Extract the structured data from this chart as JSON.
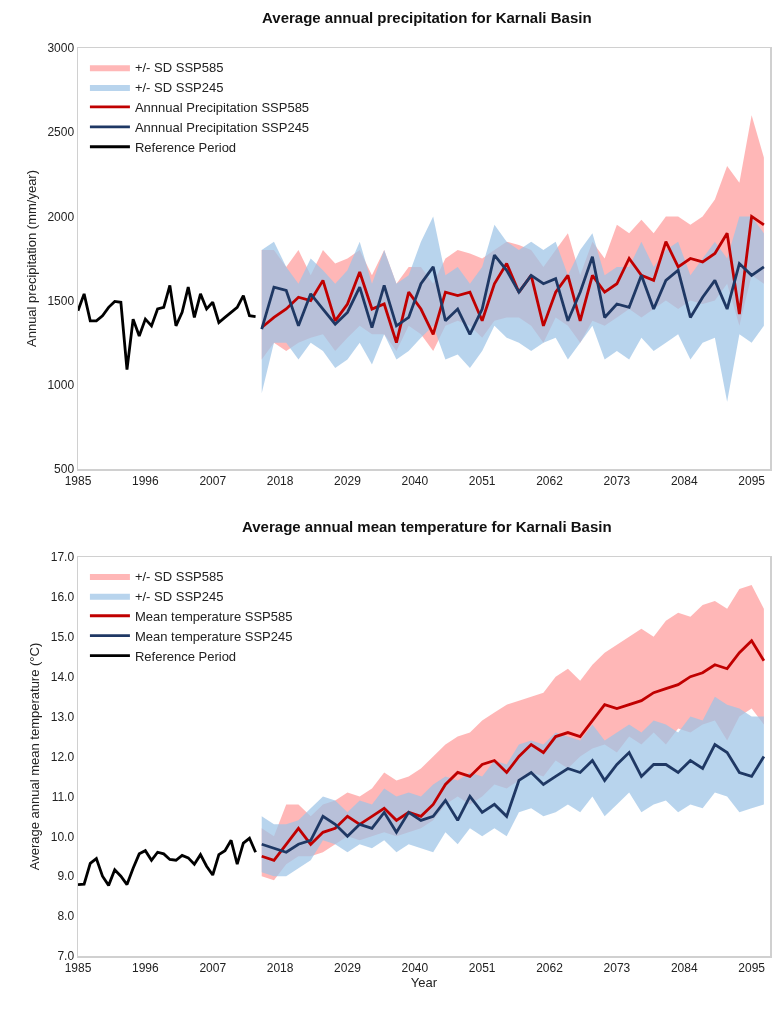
{
  "chart_data": [
    {
      "type": "line",
      "title": "Average annual precipitation for Karnali Basin",
      "ylabel": "Annual precipitation (mm/year)",
      "legend": "top left",
      "xlim": [
        1985,
        2098
      ],
      "xticks": [
        1985,
        1996,
        2007,
        2018,
        2029,
        2040,
        2051,
        2062,
        2073,
        2084,
        2095
      ],
      "ylim": [
        500,
        3000
      ],
      "yticks": [
        500,
        1000,
        1500,
        2000,
        2500,
        3000
      ],
      "series": [
        {
          "name": "+/- SD SSP585",
          "type": "area",
          "color": "#ff9b9b",
          "x": [
            2015,
            2017,
            2019,
            2021,
            2023,
            2025,
            2027,
            2029,
            2031,
            2033,
            2035,
            2037,
            2039,
            2041,
            2043,
            2045,
            2047,
            2049,
            2051,
            2053,
            2055,
            2057,
            2059,
            2061,
            2063,
            2065,
            2067,
            2069,
            2071,
            2073,
            2075,
            2077,
            2079,
            2081,
            2083,
            2085,
            2087,
            2089,
            2091,
            2093,
            2095,
            2097
          ],
          "values": [
            null,
            null,
            null,
            null,
            null,
            null,
            null,
            null,
            null,
            null,
            null,
            null,
            null,
            null,
            null,
            null,
            null,
            null,
            null,
            null,
            null,
            null,
            null,
            null,
            null,
            null,
            null,
            null,
            null,
            null,
            null,
            null,
            null,
            null,
            null,
            null,
            null,
            null,
            null,
            null,
            null,
            null
          ],
          "lower": [
            1150,
            1250,
            1200,
            1250,
            1280,
            1300,
            1200,
            1280,
            1350,
            1300,
            1300,
            1200,
            1350,
            1300,
            1200,
            1350,
            1380,
            1350,
            1280,
            1380,
            1400,
            1400,
            1350,
            1250,
            1400,
            1350,
            1250,
            1380,
            1350,
            1400,
            1450,
            1400,
            1450,
            1500,
            1450,
            1500,
            1480,
            1500,
            1600,
            1350,
            1650,
            1600
          ],
          "upper": [
            1800,
            1800,
            1700,
            1800,
            1650,
            1800,
            1720,
            1750,
            1800,
            1650,
            1800,
            1600,
            1700,
            1700,
            1600,
            1750,
            1800,
            1780,
            1750,
            1800,
            1850,
            1830,
            1800,
            1700,
            1800,
            1900,
            1650,
            1850,
            1750,
            1950,
            1900,
            1980,
            1900,
            2000,
            2000,
            1950,
            2000,
            2100,
            2300,
            2200,
            2600,
            2350
          ]
        },
        {
          "name": "+/- SD SSP245",
          "type": "area",
          "color": "#9dc3e6",
          "x": [
            2015,
            2017,
            2019,
            2021,
            2023,
            2025,
            2027,
            2029,
            2031,
            2033,
            2035,
            2037,
            2039,
            2041,
            2043,
            2045,
            2047,
            2049,
            2051,
            2053,
            2055,
            2057,
            2059,
            2061,
            2063,
            2065,
            2067,
            2069,
            2071,
            2073,
            2075,
            2077,
            2079,
            2081,
            2083,
            2085,
            2087,
            2089,
            2091,
            2093,
            2095,
            2097
          ],
          "values": [
            null,
            null,
            null,
            null,
            null,
            null,
            null,
            null,
            null,
            null,
            null,
            null,
            null,
            null,
            null,
            null,
            null,
            null,
            null,
            null,
            null,
            null,
            null,
            null,
            null,
            null,
            null,
            null,
            null,
            null,
            null,
            null,
            null,
            null,
            null,
            null,
            null,
            null,
            null,
            null,
            null,
            null
          ],
          "lower": [
            950,
            1250,
            1250,
            1150,
            1250,
            1200,
            1100,
            1150,
            1250,
            1120,
            1300,
            1150,
            1200,
            1280,
            1350,
            1150,
            1180,
            1100,
            1200,
            1350,
            1280,
            1250,
            1200,
            1250,
            1280,
            1150,
            1250,
            1350,
            1150,
            1200,
            1150,
            1280,
            1200,
            1250,
            1300,
            1150,
            1250,
            1280,
            900,
            1300,
            1250,
            1350
          ],
          "upper": [
            1800,
            1850,
            1700,
            1600,
            1750,
            1680,
            1600,
            1680,
            1850,
            1600,
            1800,
            1600,
            1650,
            1850,
            2000,
            1650,
            1700,
            1600,
            1700,
            1950,
            1850,
            1800,
            1850,
            1800,
            1850,
            1650,
            1800,
            1900,
            1650,
            1700,
            1700,
            1850,
            1700,
            1800,
            1850,
            1650,
            1750,
            1850,
            1750,
            2000,
            2000,
            1900
          ]
        },
        {
          "name": "Annnual Precipitation SSP585",
          "color": "#c00000",
          "x": [
            2015,
            2017,
            2019,
            2021,
            2023,
            2025,
            2027,
            2029,
            2031,
            2033,
            2035,
            2037,
            2039,
            2041,
            2043,
            2045,
            2047,
            2049,
            2051,
            2053,
            2055,
            2057,
            2059,
            2061,
            2063,
            2065,
            2067,
            2069,
            2071,
            2073,
            2075,
            2077,
            2079,
            2081,
            2083,
            2085,
            2087,
            2089,
            2091,
            2093,
            2095,
            2097
          ],
          "values": [
            1340,
            1400,
            1450,
            1520,
            1500,
            1620,
            1380,
            1480,
            1670,
            1450,
            1480,
            1250,
            1550,
            1450,
            1300,
            1550,
            1530,
            1550,
            1380,
            1600,
            1720,
            1550,
            1650,
            1350,
            1550,
            1650,
            1380,
            1650,
            1550,
            1600,
            1750,
            1650,
            1620,
            1850,
            1700,
            1750,
            1730,
            1780,
            1900,
            1420,
            2000,
            1950
          ]
        },
        {
          "name": "Annnual Precipitation SSP245",
          "color": "#1f3864",
          "x": [
            2015,
            2017,
            2019,
            2021,
            2023,
            2025,
            2027,
            2029,
            2031,
            2033,
            2035,
            2037,
            2039,
            2041,
            2043,
            2045,
            2047,
            2049,
            2051,
            2053,
            2055,
            2057,
            2059,
            2061,
            2063,
            2065,
            2067,
            2069,
            2071,
            2073,
            2075,
            2077,
            2079,
            2081,
            2083,
            2085,
            2087,
            2089,
            2091,
            2093,
            2095,
            2097
          ],
          "values": [
            1330,
            1580,
            1560,
            1350,
            1540,
            1450,
            1360,
            1430,
            1580,
            1340,
            1590,
            1350,
            1400,
            1600,
            1700,
            1380,
            1450,
            1300,
            1450,
            1770,
            1680,
            1550,
            1650,
            1600,
            1630,
            1380,
            1550,
            1760,
            1400,
            1480,
            1460,
            1650,
            1450,
            1620,
            1680,
            1400,
            1520,
            1620,
            1450,
            1720,
            1650,
            1700
          ]
        },
        {
          "name": "Reference Period",
          "color": "#000000",
          "x": [
            1985,
            1986,
            1987,
            1988,
            1989,
            1990,
            1991,
            1992,
            1993,
            1994,
            1995,
            1996,
            1997,
            1998,
            1999,
            2000,
            2001,
            2002,
            2003,
            2004,
            2005,
            2006,
            2007,
            2008,
            2009,
            2010,
            2011,
            2012,
            2013,
            2014
          ],
          "values": [
            1440,
            1540,
            1380,
            1380,
            1410,
            1460,
            1495,
            1490,
            1090,
            1390,
            1290,
            1390,
            1350,
            1450,
            1460,
            1590,
            1350,
            1430,
            1580,
            1400,
            1540,
            1450,
            1490,
            1370,
            1400,
            1430,
            1460,
            1530,
            1410,
            1405
          ]
        }
      ]
    },
    {
      "type": "line",
      "title": "Average annual mean temperature for Karnali Basin",
      "xlabel": "Year",
      "ylabel": "Average annual mean temperature (°C)",
      "legend": "top left",
      "xlim": [
        1985,
        2098
      ],
      "xticks": [
        1985,
        1996,
        2007,
        2018,
        2029,
        2040,
        2051,
        2062,
        2073,
        2084,
        2095
      ],
      "ylim": [
        7,
        17
      ],
      "yticks": [
        {
          "value": 7,
          "label": "7.0"
        },
        {
          "value": 8,
          "label": "8.0"
        },
        {
          "value": 9,
          "label": "9.0"
        },
        {
          "value": 10,
          "label": "10.0"
        },
        {
          "value": 11,
          "label": "11.0"
        },
        {
          "value": 12,
          "label": "12.0"
        },
        {
          "value": 13,
          "label": "13.0"
        },
        {
          "value": 14,
          "label": "14.0"
        },
        {
          "value": 15,
          "label": "15.0"
        },
        {
          "value": 16,
          "label": "16.0"
        },
        {
          "value": 17,
          "label": "17.0"
        }
      ],
      "series": [
        {
          "name": "+/- SD SSP585",
          "type": "area",
          "color": "#ff9b9b",
          "x": [
            2015,
            2017,
            2019,
            2021,
            2023,
            2025,
            2027,
            2029,
            2031,
            2033,
            2035,
            2037,
            2039,
            2041,
            2043,
            2045,
            2047,
            2049,
            2051,
            2053,
            2055,
            2057,
            2059,
            2061,
            2063,
            2065,
            2067,
            2069,
            2071,
            2073,
            2075,
            2077,
            2079,
            2081,
            2083,
            2085,
            2087,
            2089,
            2091,
            2093,
            2095,
            2097
          ],
          "values": [
            null,
            null,
            null,
            null,
            null,
            null,
            null,
            null,
            null,
            null,
            null,
            null,
            null,
            null,
            null,
            null,
            null,
            null,
            null,
            null,
            null,
            null,
            null,
            null,
            null,
            null,
            null,
            null,
            null,
            null,
            null,
            null,
            null,
            null,
            null,
            null,
            null,
            null,
            null,
            null,
            null,
            null
          ],
          "lower": [
            9.0,
            8.9,
            9.3,
            9.5,
            9.5,
            9.6,
            9.8,
            10.0,
            9.9,
            10.0,
            10.1,
            10.0,
            10.1,
            10.2,
            10.4,
            10.8,
            11.0,
            10.8,
            11.0,
            11.3,
            11.2,
            11.4,
            11.6,
            11.5,
            11.9,
            11.7,
            12.0,
            12.2,
            12.3,
            12.1,
            12.5,
            12.3,
            12.6,
            12.3,
            12.7,
            12.6,
            12.8,
            12.9,
            12.4,
            13.0,
            13.2,
            12.8
          ],
          "upper": [
            10.2,
            10.0,
            10.8,
            10.8,
            10.5,
            10.8,
            10.9,
            11.1,
            11.0,
            11.2,
            11.6,
            11.4,
            11.5,
            11.7,
            12.0,
            12.3,
            12.5,
            12.6,
            12.9,
            13.1,
            13.3,
            13.4,
            13.5,
            13.6,
            14.0,
            14.2,
            13.9,
            14.3,
            14.6,
            14.8,
            15.0,
            15.2,
            15.0,
            15.4,
            15.6,
            15.5,
            15.8,
            15.9,
            15.7,
            16.2,
            16.3,
            15.7
          ]
        },
        {
          "name": "+/- SD SSP245",
          "type": "area",
          "color": "#9dc3e6",
          "x": [
            2015,
            2017,
            2019,
            2021,
            2023,
            2025,
            2027,
            2029,
            2031,
            2033,
            2035,
            2037,
            2039,
            2041,
            2043,
            2045,
            2047,
            2049,
            2051,
            2053,
            2055,
            2057,
            2059,
            2061,
            2063,
            2065,
            2067,
            2069,
            2071,
            2073,
            2075,
            2077,
            2079,
            2081,
            2083,
            2085,
            2087,
            2089,
            2091,
            2093,
            2095,
            2097
          ],
          "values": [
            null,
            null,
            null,
            null,
            null,
            null,
            null,
            null,
            null,
            null,
            null,
            null,
            null,
            null,
            null,
            null,
            null,
            null,
            null,
            null,
            null,
            null,
            null,
            null,
            null,
            null,
            null,
            null,
            null,
            null,
            null,
            null,
            null,
            null,
            null,
            null,
            null,
            null,
            null,
            null,
            null,
            null
          ],
          "lower": [
            9.1,
            9.0,
            9.0,
            9.2,
            9.4,
            9.9,
            9.8,
            9.6,
            9.8,
            9.7,
            9.9,
            9.6,
            9.8,
            9.7,
            9.6,
            10.1,
            9.8,
            10.2,
            10.0,
            10.2,
            10.0,
            10.6,
            10.7,
            10.5,
            10.6,
            10.8,
            10.6,
            11.0,
            10.5,
            10.8,
            11.1,
            10.6,
            10.8,
            10.9,
            10.6,
            10.8,
            10.7,
            11.1,
            11.0,
            10.6,
            10.7,
            10.8
          ],
          "upper": [
            10.5,
            10.3,
            10.3,
            10.4,
            10.7,
            11.0,
            10.9,
            10.6,
            10.9,
            10.8,
            11.2,
            11.0,
            11.1,
            11.0,
            11.3,
            11.5,
            11.4,
            11.6,
            11.5,
            11.9,
            11.8,
            12.3,
            12.4,
            12.3,
            12.6,
            12.5,
            12.4,
            12.8,
            12.4,
            12.6,
            12.8,
            12.6,
            12.9,
            12.8,
            12.6,
            13.0,
            12.9,
            13.5,
            13.3,
            13.2,
            13.0,
            13.0
          ]
        },
        {
          "name": "Mean temperature SSP585",
          "color": "#c00000",
          "x": [
            2015,
            2017,
            2019,
            2021,
            2023,
            2025,
            2027,
            2029,
            2031,
            2033,
            2035,
            2037,
            2039,
            2041,
            2043,
            2045,
            2047,
            2049,
            2051,
            2053,
            2055,
            2057,
            2059,
            2061,
            2063,
            2065,
            2067,
            2069,
            2071,
            2073,
            2075,
            2077,
            2079,
            2081,
            2083,
            2085,
            2087,
            2089,
            2091,
            2093,
            2095,
            2097
          ],
          "values": [
            9.5,
            9.4,
            9.8,
            10.2,
            9.8,
            10.1,
            10.2,
            10.5,
            10.3,
            10.5,
            10.7,
            10.4,
            10.6,
            10.5,
            10.8,
            11.3,
            11.6,
            11.5,
            11.8,
            11.9,
            11.6,
            12.0,
            12.3,
            12.1,
            12.5,
            12.6,
            12.5,
            12.9,
            13.3,
            13.2,
            13.3,
            13.4,
            13.6,
            13.7,
            13.8,
            14.0,
            14.1,
            14.3,
            14.2,
            14.6,
            14.9,
            14.4
          ]
        },
        {
          "name": "Mean temperature SSP245",
          "color": "#1f3864",
          "x": [
            2015,
            2017,
            2019,
            2021,
            2023,
            2025,
            2027,
            2029,
            2031,
            2033,
            2035,
            2037,
            2039,
            2041,
            2043,
            2045,
            2047,
            2049,
            2051,
            2053,
            2055,
            2057,
            2059,
            2061,
            2063,
            2065,
            2067,
            2069,
            2071,
            2073,
            2075,
            2077,
            2079,
            2081,
            2083,
            2085,
            2087,
            2089,
            2091,
            2093,
            2095,
            2097
          ],
          "values": [
            9.8,
            9.7,
            9.6,
            9.8,
            9.9,
            10.5,
            10.3,
            10.0,
            10.3,
            10.2,
            10.6,
            10.1,
            10.6,
            10.4,
            10.5,
            10.9,
            10.4,
            11.0,
            10.6,
            10.8,
            10.5,
            11.4,
            11.6,
            11.3,
            11.5,
            11.7,
            11.6,
            11.9,
            11.4,
            11.8,
            12.1,
            11.5,
            11.8,
            11.8,
            11.6,
            11.9,
            11.7,
            12.3,
            12.1,
            11.6,
            11.5,
            12.0
          ]
        },
        {
          "name": "Reference Period",
          "color": "#000000",
          "x": [
            1985,
            1986,
            1987,
            1988,
            1989,
            1990,
            1991,
            1992,
            1993,
            1994,
            1995,
            1996,
            1997,
            1998,
            1999,
            2000,
            2001,
            2002,
            2003,
            2004,
            2005,
            2006,
            2007,
            2008,
            2009,
            2010,
            2011,
            2012,
            2013,
            2014
          ],
          "values": [
            8.79,
            8.8,
            9.32,
            9.44,
            9.0,
            8.77,
            9.16,
            9.0,
            8.79,
            9.2,
            9.56,
            9.64,
            9.4,
            9.6,
            9.56,
            9.42,
            9.4,
            9.52,
            9.46,
            9.3,
            9.54,
            9.25,
            9.03,
            9.54,
            9.64,
            9.9,
            9.3,
            9.83,
            9.95,
            9.6
          ]
        }
      ]
    }
  ]
}
